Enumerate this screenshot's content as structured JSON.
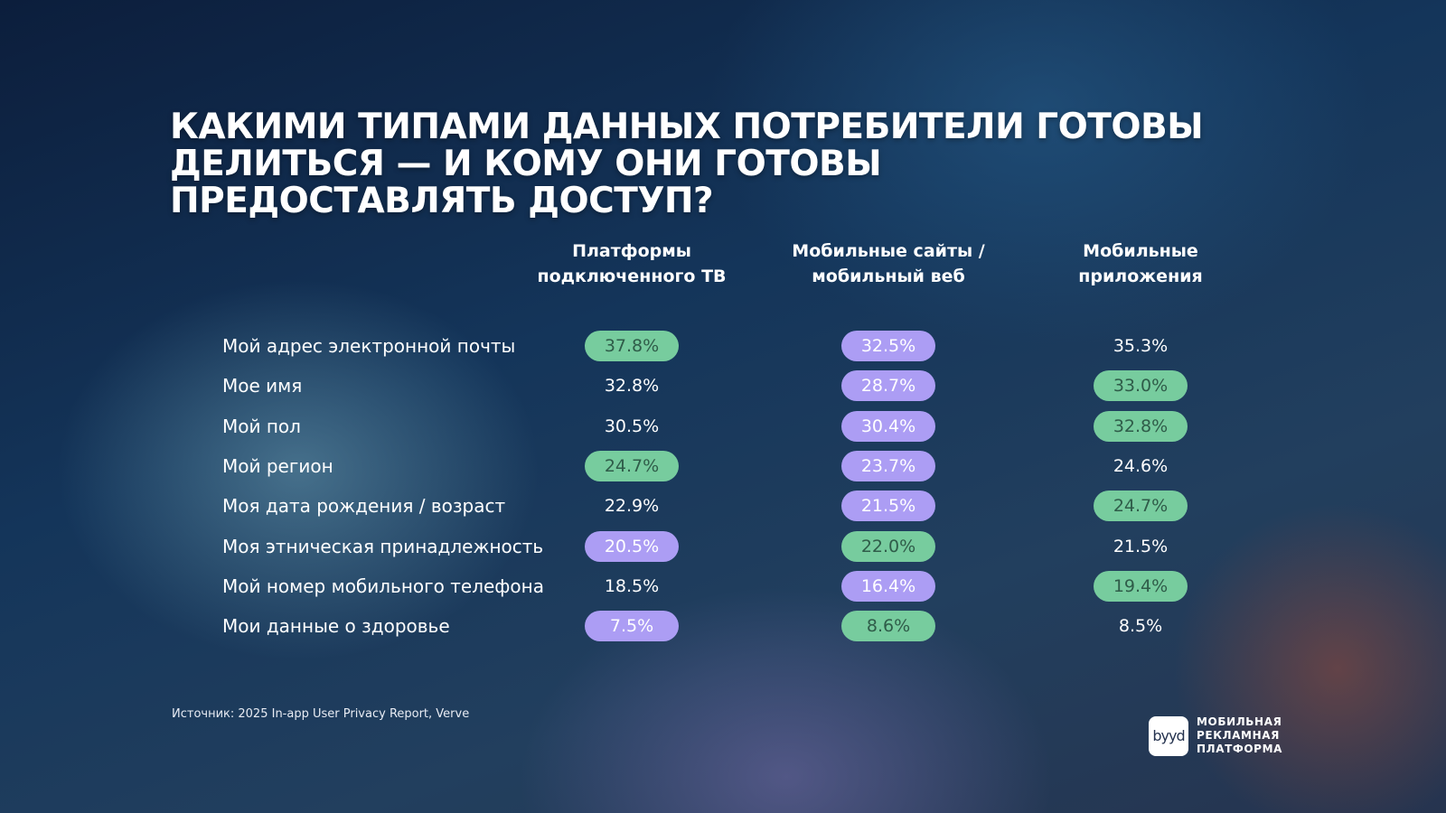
{
  "title": "КАКИМИ ТИПАМИ ДАННЫХ ПОТРЕБИТЕЛИ ГОТОВЫ ДЕЛИТЬСЯ — И КОМУ ОНИ ГОТОВЫ ПРЕДОСТАВЛЯТЬ ДОСТУП?",
  "colors": {
    "green": "#77cc9e",
    "purple": "#ac9df4",
    "green_text": "#2f5c49"
  },
  "chart_data": {
    "type": "table",
    "title": "КАКИМИ ТИПАМИ ДАННЫХ ПОТРЕБИТЕЛИ ГОТОВЫ ДЕЛИТЬСЯ — И КОМУ ОНИ ГОТОВЫ ПРЕДОСТАВЛЯТЬ ДОСТУП?",
    "columns": [
      "Платформы\nподключенного ТВ",
      "Мобильные сайты /\nмобильный веб",
      "Мобильные\nприложения"
    ],
    "rows": [
      {
        "label": "Мой адрес электронной почты",
        "cells": [
          {
            "text": "37.8%",
            "value": 37.8,
            "highlight": "green"
          },
          {
            "text": "32.5%",
            "value": 32.5,
            "highlight": "purple"
          },
          {
            "text": "35.3%",
            "value": 35.3,
            "highlight": "none"
          }
        ]
      },
      {
        "label": "Мое имя",
        "cells": [
          {
            "text": "32.8%",
            "value": 32.8,
            "highlight": "none"
          },
          {
            "text": "28.7%",
            "value": 28.7,
            "highlight": "purple"
          },
          {
            "text": "33.0%",
            "value": 33.0,
            "highlight": "green"
          }
        ]
      },
      {
        "label": "Мой пол",
        "cells": [
          {
            "text": "30.5%",
            "value": 30.5,
            "highlight": "none"
          },
          {
            "text": "30.4%",
            "value": 30.4,
            "highlight": "purple"
          },
          {
            "text": "32.8%",
            "value": 32.8,
            "highlight": "green"
          }
        ]
      },
      {
        "label": "Мой регион",
        "cells": [
          {
            "text": "24.7%",
            "value": 24.7,
            "highlight": "green"
          },
          {
            "text": "23.7%",
            "value": 23.7,
            "highlight": "purple"
          },
          {
            "text": "24.6%",
            "value": 24.6,
            "highlight": "none"
          }
        ]
      },
      {
        "label": "Моя дата рождения / возраст",
        "cells": [
          {
            "text": "22.9%",
            "value": 22.9,
            "highlight": "none"
          },
          {
            "text": "21.5%",
            "value": 21.5,
            "highlight": "purple"
          },
          {
            "text": "24.7%",
            "value": 24.7,
            "highlight": "green"
          }
        ]
      },
      {
        "label": "Моя этническая принадлежность",
        "cells": [
          {
            "text": "20.5%",
            "value": 20.5,
            "highlight": "purple"
          },
          {
            "text": "22.0%",
            "value": 22.0,
            "highlight": "green"
          },
          {
            "text": "21.5%",
            "value": 21.5,
            "highlight": "none"
          }
        ]
      },
      {
        "label": "Мой номер мобильного телефона",
        "cells": [
          {
            "text": "18.5%",
            "value": 18.5,
            "highlight": "none"
          },
          {
            "text": "16.4%",
            "value": 16.4,
            "highlight": "purple"
          },
          {
            "text": "19.4%",
            "value": 19.4,
            "highlight": "green"
          }
        ]
      },
      {
        "label": "Мои данные о здоровье",
        "cells": [
          {
            "text": "7.5%",
            "value": 7.5,
            "highlight": "purple"
          },
          {
            "text": "8.6%",
            "value": 8.6,
            "highlight": "green"
          },
          {
            "text": "8.5%",
            "value": 8.5,
            "highlight": "none"
          }
        ]
      }
    ]
  },
  "source": "Источник: 2025 In-app User Privacy Report, Verve",
  "logo": {
    "mark": "byyd",
    "text": "МОБИЛЬНАЯ\nРЕКЛАМНАЯ\nПЛАТФОРМА"
  }
}
